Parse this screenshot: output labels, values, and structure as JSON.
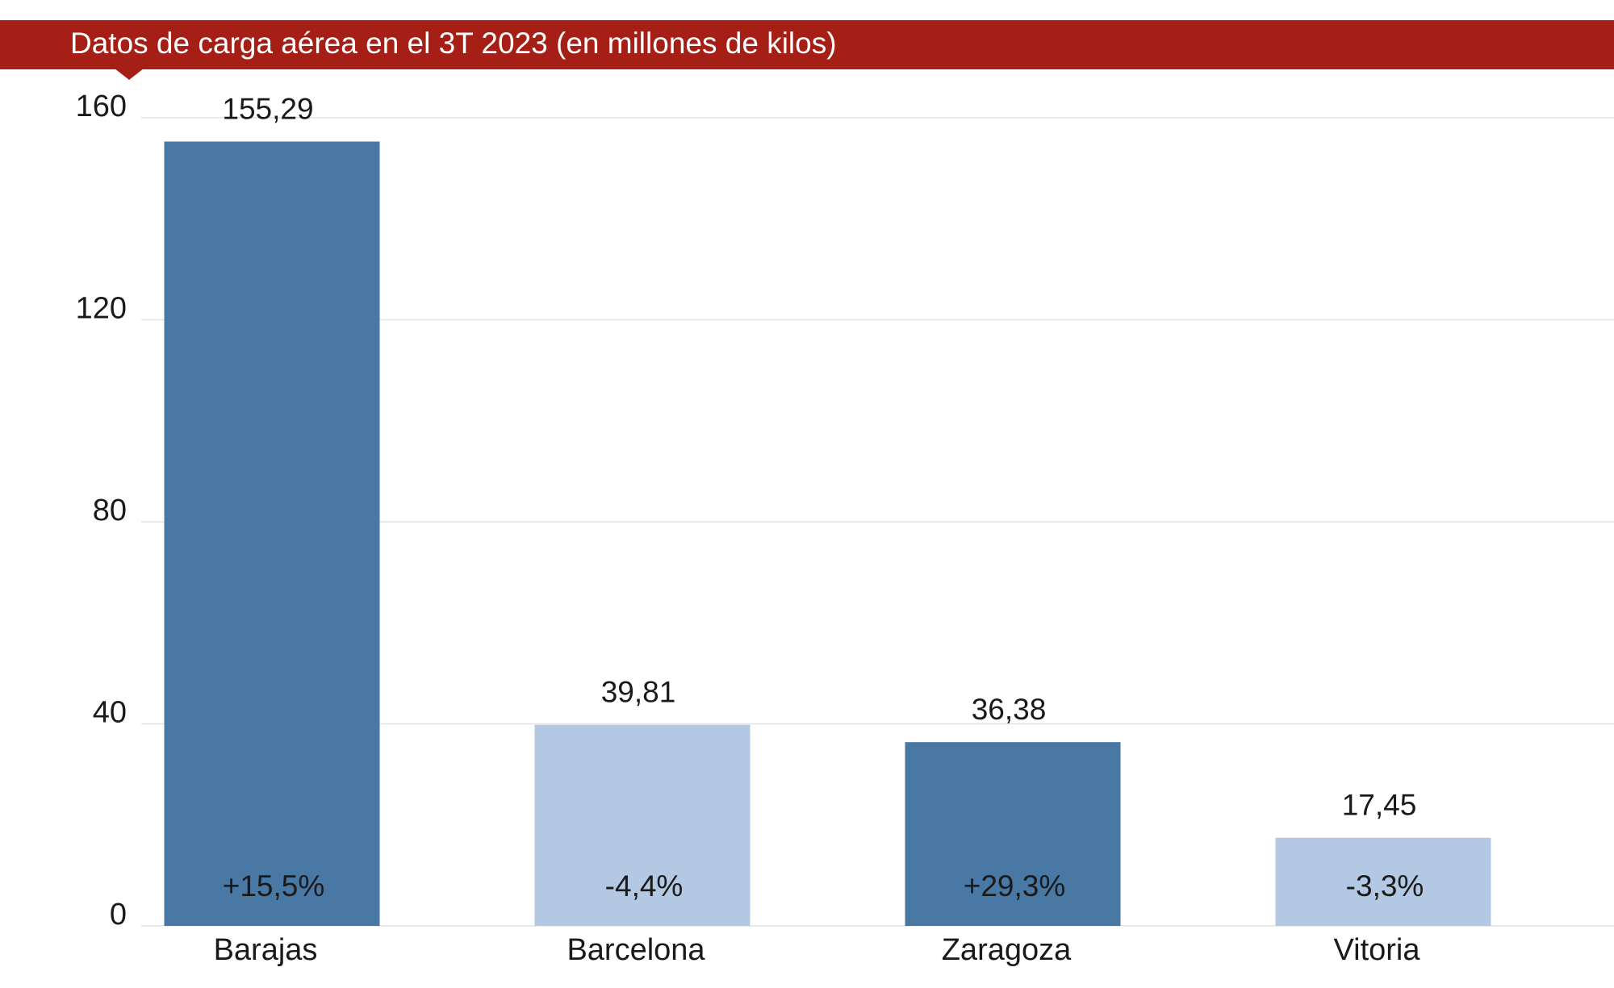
{
  "chart_data": {
    "type": "bar",
    "title": "Datos de carga aérea en el 3T 2023 (en millones de kilos)",
    "categories": [
      "Barajas",
      "Barcelona",
      "Zaragoza",
      "Vitoria"
    ],
    "values": [
      155.29,
      39.81,
      36.38,
      17.45
    ],
    "value_labels": [
      "155,29",
      "39,81",
      "36,38",
      "17,45"
    ],
    "changes": [
      15.5,
      -4.4,
      29.3,
      -3.3
    ],
    "change_labels": [
      "+15,5%",
      "-4,4%",
      "+29,3%",
      "-3,3%"
    ],
    "colors": [
      "#4a78a4",
      "#b3c8e3",
      "#4a78a4",
      "#b3c8e3"
    ],
    "title_color": "#a51f16",
    "ylim": [
      0,
      160
    ],
    "yticks": [
      0,
      40,
      80,
      120,
      160
    ],
    "grid": true
  }
}
